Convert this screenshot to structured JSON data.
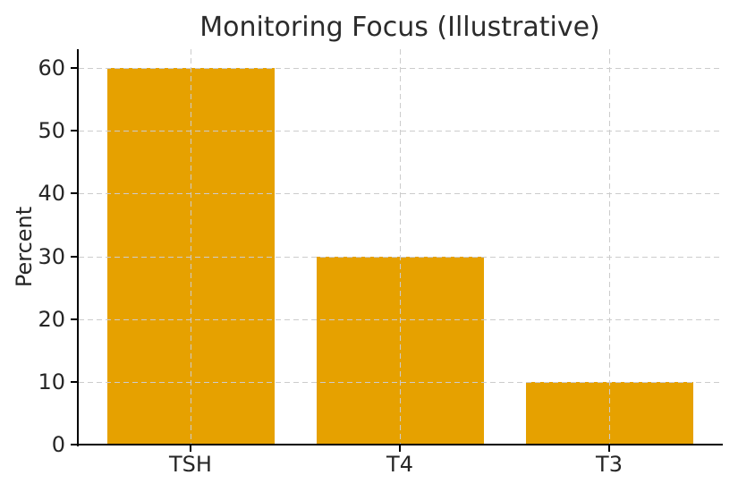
{
  "chart_data": {
    "type": "bar",
    "title": "Monitoring Focus (Illustrative)",
    "categories": [
      "TSH",
      "T4",
      "T3"
    ],
    "values": [
      60,
      30,
      10
    ],
    "xlabel": "",
    "ylabel": "Percent",
    "ylim": [
      0,
      63
    ],
    "yticks": [
      0,
      10,
      20,
      30,
      40,
      50,
      60
    ],
    "grid": true,
    "grid_style": "dashed",
    "legend": "none",
    "colors": {
      "bar": "#E6A100",
      "grid": "#CCCCCC",
      "axis": "#000000",
      "text": "#262626",
      "background": "#FFFFFF"
    }
  }
}
